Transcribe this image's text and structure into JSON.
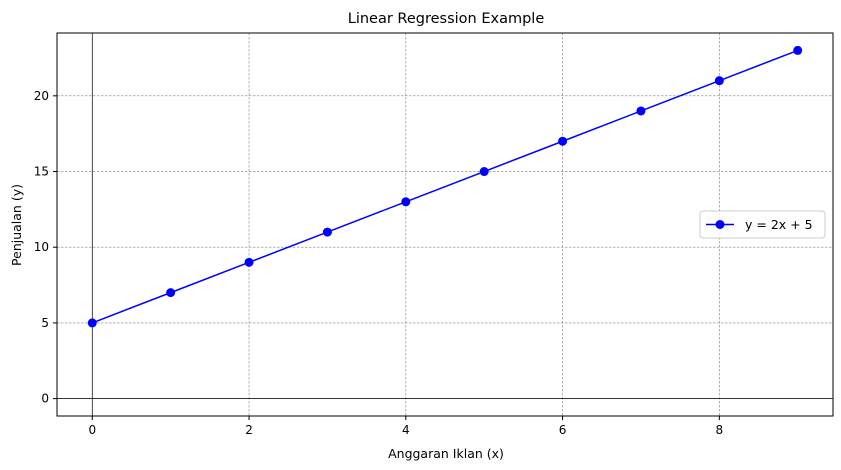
{
  "chart_data": {
    "type": "line",
    "title": "Linear Regression Example",
    "xlabel": "Anggaran Iklan (x)",
    "ylabel": "Penjualan (y)",
    "xlim": [
      -0.45,
      9.45
    ],
    "ylim": [
      -1.15,
      24.15
    ],
    "xticks": [
      0,
      2,
      4,
      6,
      8
    ],
    "yticks": [
      0,
      5,
      10,
      15,
      20
    ],
    "grid": true,
    "grid_style": "dashed",
    "reference_lines": {
      "x": 0,
      "y": 0,
      "color": "#000000"
    },
    "legend_position": "center-right",
    "series": [
      {
        "name": "y = 2x + 5",
        "color": "#0000ff",
        "marker": "circle",
        "x": [
          0,
          1,
          2,
          3,
          4,
          5,
          6,
          7,
          8,
          9
        ],
        "y": [
          5,
          7,
          9,
          11,
          13,
          15,
          17,
          19,
          21,
          23
        ]
      }
    ]
  }
}
